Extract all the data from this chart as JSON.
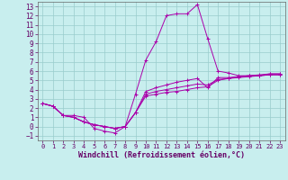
{
  "xlabel": "Windchill (Refroidissement éolien,°C)",
  "bg_color": "#c8eeee",
  "line_color": "#aa00aa",
  "grid_color": "#99cccc",
  "xlim": [
    -0.5,
    23.5
  ],
  "ylim": [
    -1.5,
    13.5
  ],
  "xticks": [
    0,
    1,
    2,
    3,
    4,
    5,
    6,
    7,
    8,
    9,
    10,
    11,
    12,
    13,
    14,
    15,
    16,
    17,
    18,
    19,
    20,
    21,
    22,
    23
  ],
  "yticks": [
    -1,
    0,
    1,
    2,
    3,
    4,
    5,
    6,
    7,
    8,
    9,
    10,
    11,
    12,
    13
  ],
  "lines": [
    [
      2.5,
      2.2,
      1.2,
      1.0,
      0.5,
      0.2,
      0.0,
      -0.2,
      0.0,
      1.5,
      3.3,
      3.5,
      3.7,
      3.8,
      4.0,
      4.2,
      4.3,
      5.0,
      5.2,
      5.3,
      5.4,
      5.5,
      5.6,
      5.6
    ],
    [
      2.5,
      2.2,
      1.2,
      1.0,
      0.5,
      0.2,
      0.0,
      -0.2,
      0.0,
      1.5,
      3.5,
      3.8,
      4.0,
      4.2,
      4.4,
      4.6,
      4.5,
      5.1,
      5.2,
      5.4,
      5.5,
      5.5,
      5.6,
      5.6
    ],
    [
      2.5,
      2.2,
      1.2,
      1.0,
      0.5,
      0.2,
      0.0,
      -0.2,
      0.0,
      1.5,
      3.8,
      4.2,
      4.5,
      4.8,
      5.0,
      5.2,
      4.2,
      5.3,
      5.3,
      5.4,
      5.5,
      5.6,
      5.7,
      5.7
    ],
    [
      2.5,
      2.2,
      1.2,
      1.2,
      1.0,
      -0.2,
      -0.5,
      -0.7,
      0.0,
      3.5,
      7.2,
      9.2,
      12.0,
      12.2,
      12.2,
      13.2,
      9.5,
      6.0,
      5.8,
      5.5,
      5.5,
      5.5,
      5.7,
      5.7
    ]
  ]
}
